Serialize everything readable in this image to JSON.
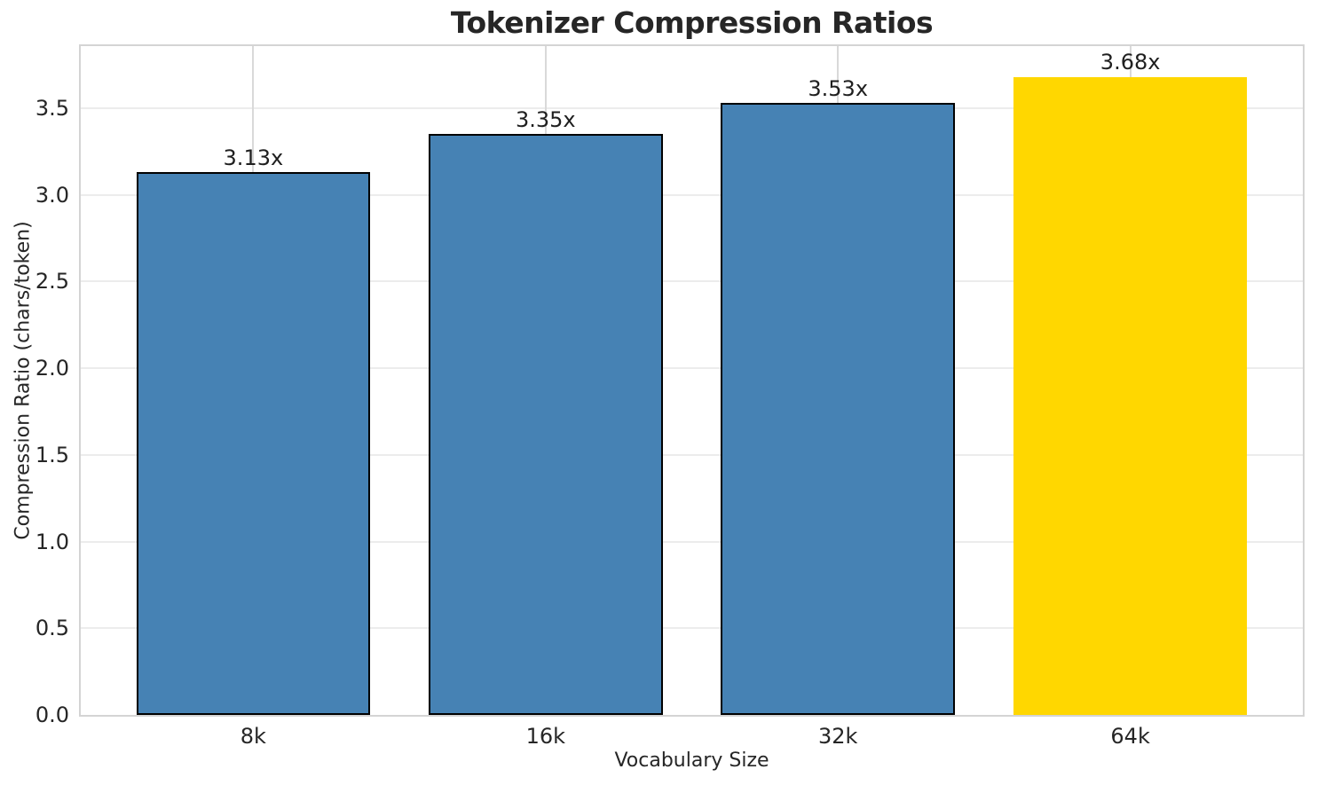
{
  "chart_data": {
    "type": "bar",
    "title": "Tokenizer Compression Ratios",
    "xlabel": "Vocabulary Size",
    "ylabel": "Compression Ratio (chars/token)",
    "categories": [
      "8k",
      "16k",
      "32k",
      "64k"
    ],
    "values": [
      3.13,
      3.35,
      3.53,
      3.68
    ],
    "bar_labels": [
      "3.13x",
      "3.35x",
      "3.53x",
      "3.68x"
    ],
    "yticks": [
      "0.0",
      "0.5",
      "1.0",
      "1.5",
      "2.0",
      "2.5",
      "3.0",
      "3.5"
    ],
    "ytick_values": [
      0,
      0.5,
      1,
      1.5,
      2,
      2.5,
      3,
      3.5
    ],
    "ylim": [
      0,
      3.858
    ],
    "xlim": [
      -0.59,
      3.59
    ],
    "bar_width": 0.8,
    "grid": true,
    "legend": false,
    "colors": {
      "bar": "#4682B4",
      "highlight_bar": "#FFD700",
      "bar_edge": "#000000",
      "grid_horizontal": "#ececec",
      "grid_vertical": "#d9d9d9",
      "spine": "#d4d4d4",
      "text": "#262626",
      "background": "#ffffff"
    },
    "bar_colors": [
      "#4682B4",
      "#4682B4",
      "#4682B4",
      "#FFD700"
    ],
    "bar_edge_colors": [
      "#000000",
      "#000000",
      "#000000",
      "none"
    ]
  }
}
